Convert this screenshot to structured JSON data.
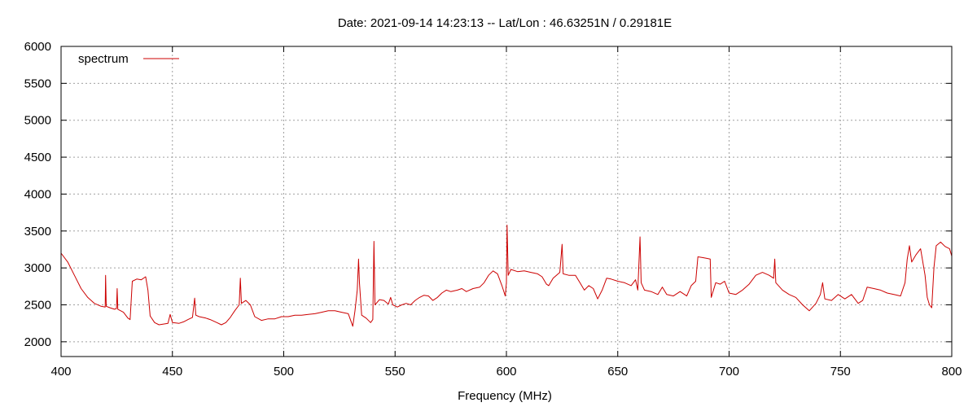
{
  "chart_data": {
    "type": "line",
    "title": "Date: 2021-09-14 14:23:13  --  Lat/Lon : 46.63251N / 0.29181E",
    "xlabel": "Frequency (MHz)",
    "ylabel": "",
    "xlim": [
      400,
      800
    ],
    "ylim": [
      1800,
      6000
    ],
    "x_ticks": [
      400,
      450,
      500,
      550,
      600,
      650,
      700,
      750,
      800
    ],
    "y_ticks": [
      2000,
      2500,
      3000,
      3500,
      4000,
      4500,
      5000,
      5500,
      6000
    ],
    "grid": true,
    "legend_position": "top-left",
    "series": [
      {
        "name": "spectrum",
        "color": "#cc0000",
        "points": [
          [
            400,
            3200
          ],
          [
            403,
            3080
          ],
          [
            406,
            2900
          ],
          [
            409,
            2720
          ],
          [
            412,
            2600
          ],
          [
            415,
            2520
          ],
          [
            418,
            2480
          ],
          [
            419.8,
            2470
          ],
          [
            420,
            2900
          ],
          [
            420.3,
            2480
          ],
          [
            422,
            2460
          ],
          [
            424,
            2440
          ],
          [
            424.9,
            2450
          ],
          [
            425.2,
            2720
          ],
          [
            425.5,
            2440
          ],
          [
            428,
            2400
          ],
          [
            430,
            2320
          ],
          [
            431,
            2300
          ],
          [
            432,
            2820
          ],
          [
            434,
            2850
          ],
          [
            436,
            2840
          ],
          [
            438,
            2880
          ],
          [
            439,
            2700
          ],
          [
            440,
            2350
          ],
          [
            442,
            2260
          ],
          [
            444,
            2230
          ],
          [
            446,
            2240
          ],
          [
            448,
            2250
          ],
          [
            449,
            2370
          ],
          [
            450,
            2260
          ],
          [
            453,
            2250
          ],
          [
            455,
            2270
          ],
          [
            457,
            2300
          ],
          [
            459,
            2330
          ],
          [
            460,
            2590
          ],
          [
            460.5,
            2360
          ],
          [
            462,
            2340
          ],
          [
            465,
            2320
          ],
          [
            467,
            2300
          ],
          [
            470,
            2260
          ],
          [
            472,
            2230
          ],
          [
            474,
            2260
          ],
          [
            476,
            2330
          ],
          [
            478,
            2420
          ],
          [
            480,
            2500
          ],
          [
            480.5,
            2860
          ],
          [
            481,
            2520
          ],
          [
            483,
            2560
          ],
          [
            485,
            2500
          ],
          [
            487,
            2340
          ],
          [
            490,
            2290
          ],
          [
            493,
            2310
          ],
          [
            496,
            2310
          ],
          [
            499,
            2340
          ],
          [
            502,
            2340
          ],
          [
            505,
            2360
          ],
          [
            508,
            2360
          ],
          [
            511,
            2370
          ],
          [
            514,
            2380
          ],
          [
            517,
            2400
          ],
          [
            520,
            2420
          ],
          [
            523,
            2420
          ],
          [
            526,
            2400
          ],
          [
            529,
            2380
          ],
          [
            531,
            2210
          ],
          [
            532,
            2420
          ],
          [
            533,
            2700
          ],
          [
            533.6,
            3120
          ],
          [
            534,
            2800
          ],
          [
            535,
            2360
          ],
          [
            537,
            2320
          ],
          [
            539,
            2260
          ],
          [
            540,
            2300
          ],
          [
            540.5,
            3360
          ],
          [
            541,
            2500
          ],
          [
            543,
            2570
          ],
          [
            545,
            2560
          ],
          [
            547,
            2510
          ],
          [
            548,
            2600
          ],
          [
            549,
            2500
          ],
          [
            551,
            2470
          ],
          [
            553,
            2500
          ],
          [
            555,
            2520
          ],
          [
            557,
            2500
          ],
          [
            559,
            2560
          ],
          [
            561,
            2600
          ],
          [
            563,
            2630
          ],
          [
            565,
            2620
          ],
          [
            567,
            2560
          ],
          [
            569,
            2600
          ],
          [
            571,
            2660
          ],
          [
            573,
            2700
          ],
          [
            575,
            2680
          ],
          [
            578,
            2700
          ],
          [
            580,
            2720
          ],
          [
            582,
            2680
          ],
          [
            585,
            2720
          ],
          [
            588,
            2740
          ],
          [
            590,
            2800
          ],
          [
            592,
            2900
          ],
          [
            594,
            2960
          ],
          [
            596,
            2920
          ],
          [
            598,
            2760
          ],
          [
            599.5,
            2620
          ],
          [
            600,
            2800
          ],
          [
            600.3,
            3580
          ],
          [
            600.8,
            2900
          ],
          [
            602,
            2980
          ],
          [
            605,
            2950
          ],
          [
            608,
            2960
          ],
          [
            611,
            2940
          ],
          [
            614,
            2920
          ],
          [
            616,
            2880
          ],
          [
            618,
            2780
          ],
          [
            619,
            2760
          ],
          [
            621,
            2860
          ],
          [
            624,
            2940
          ],
          [
            625,
            3320
          ],
          [
            625.5,
            2920
          ],
          [
            628,
            2900
          ],
          [
            631,
            2900
          ],
          [
            633,
            2800
          ],
          [
            635,
            2700
          ],
          [
            637,
            2760
          ],
          [
            639,
            2720
          ],
          [
            641,
            2580
          ],
          [
            643,
            2700
          ],
          [
            645,
            2860
          ],
          [
            647,
            2850
          ],
          [
            650,
            2820
          ],
          [
            653,
            2800
          ],
          [
            656,
            2760
          ],
          [
            658,
            2840
          ],
          [
            659,
            2700
          ],
          [
            660,
            3420
          ],
          [
            660.5,
            2800
          ],
          [
            662,
            2700
          ],
          [
            665,
            2680
          ],
          [
            668,
            2640
          ],
          [
            670,
            2740
          ],
          [
            672,
            2640
          ],
          [
            675,
            2620
          ],
          [
            678,
            2680
          ],
          [
            681,
            2620
          ],
          [
            683,
            2760
          ],
          [
            685,
            2820
          ],
          [
            686,
            3150
          ],
          [
            688,
            3140
          ],
          [
            690,
            3130
          ],
          [
            691.5,
            3120
          ],
          [
            692,
            2600
          ],
          [
            694,
            2800
          ],
          [
            696,
            2780
          ],
          [
            698,
            2820
          ],
          [
            700,
            2660
          ],
          [
            703,
            2640
          ],
          [
            706,
            2700
          ],
          [
            709,
            2780
          ],
          [
            712,
            2900
          ],
          [
            715,
            2940
          ],
          [
            718,
            2900
          ],
          [
            720,
            2860
          ],
          [
            720.5,
            3120
          ],
          [
            721,
            2800
          ],
          [
            724,
            2700
          ],
          [
            727,
            2640
          ],
          [
            730,
            2600
          ],
          [
            733,
            2500
          ],
          [
            736,
            2420
          ],
          [
            739,
            2520
          ],
          [
            741,
            2640
          ],
          [
            742,
            2800
          ],
          [
            743,
            2580
          ],
          [
            746,
            2560
          ],
          [
            749,
            2640
          ],
          [
            752,
            2580
          ],
          [
            755,
            2640
          ],
          [
            758,
            2520
          ],
          [
            760,
            2560
          ],
          [
            762,
            2740
          ],
          [
            765,
            2720
          ],
          [
            768,
            2700
          ],
          [
            771,
            2660
          ],
          [
            774,
            2640
          ],
          [
            777,
            2620
          ],
          [
            779,
            2800
          ],
          [
            780,
            3120
          ],
          [
            781,
            3300
          ],
          [
            782,
            3080
          ],
          [
            784,
            3180
          ],
          [
            786,
            3260
          ],
          [
            788,
            2900
          ],
          [
            789,
            2600
          ],
          [
            790,
            2500
          ],
          [
            791,
            2460
          ],
          [
            792,
            3000
          ],
          [
            793,
            3300
          ],
          [
            795,
            3350
          ],
          [
            797,
            3290
          ],
          [
            799,
            3260
          ],
          [
            800,
            3160
          ]
        ]
      }
    ]
  }
}
